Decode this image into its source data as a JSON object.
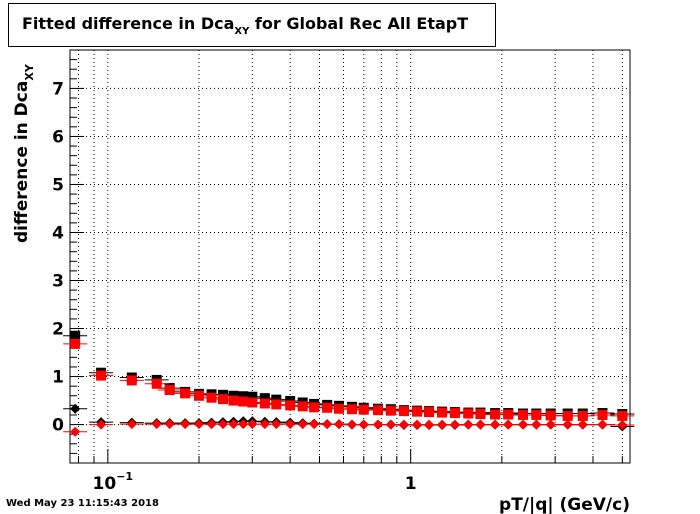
{
  "title": {
    "main": "Fitted difference in Dca",
    "sub": "XY",
    "rest": " for Global Rec All EtapT"
  },
  "timestamp": "Wed May 23 11:15:43 2018",
  "chart_data": {
    "type": "scatter",
    "xlabel": "pT/|q| (GeV/c)",
    "ylabel": "difference in Dca",
    "ylabel_sub": "XY",
    "x_scale": "log",
    "xlim": [
      0.075,
      5.3
    ],
    "ylim": [
      -0.8,
      7.8
    ],
    "grid": true,
    "x_tick_labels": [
      {
        "value": 0.1,
        "label": "10",
        "sup": "−1"
      },
      {
        "value": 1,
        "label": "1"
      }
    ],
    "y_ticks": [
      0,
      1,
      2,
      3,
      4,
      5,
      6,
      7
    ],
    "series": [
      {
        "marker": "square",
        "color": "#000000",
        "points": [
          [
            0.078,
            1.85
          ],
          [
            0.095,
            1.08
          ],
          [
            0.12,
            0.98
          ],
          [
            0.145,
            0.93
          ],
          [
            0.16,
            0.76
          ],
          [
            0.18,
            0.68
          ],
          [
            0.2,
            0.64
          ],
          [
            0.22,
            0.63
          ],
          [
            0.24,
            0.62
          ],
          [
            0.26,
            0.6
          ],
          [
            0.28,
            0.59
          ],
          [
            0.3,
            0.58
          ],
          [
            0.33,
            0.55
          ],
          [
            0.36,
            0.52
          ],
          [
            0.4,
            0.49
          ],
          [
            0.44,
            0.46
          ],
          [
            0.48,
            0.43
          ],
          [
            0.53,
            0.41
          ],
          [
            0.58,
            0.39
          ],
          [
            0.64,
            0.37
          ],
          [
            0.7,
            0.35
          ],
          [
            0.78,
            0.33
          ],
          [
            0.86,
            0.32
          ],
          [
            0.95,
            0.3
          ],
          [
            1.05,
            0.29
          ],
          [
            1.15,
            0.28
          ],
          [
            1.27,
            0.27
          ],
          [
            1.4,
            0.26
          ],
          [
            1.55,
            0.25
          ],
          [
            1.7,
            0.25
          ],
          [
            1.9,
            0.24
          ],
          [
            2.1,
            0.24
          ],
          [
            2.35,
            0.23
          ],
          [
            2.6,
            0.23
          ],
          [
            2.9,
            0.23
          ],
          [
            3.3,
            0.23
          ],
          [
            3.7,
            0.23
          ],
          [
            4.3,
            0.24
          ],
          [
            5.0,
            0.22
          ]
        ]
      },
      {
        "marker": "diamond",
        "color": "#000000",
        "points": [
          [
            0.078,
            0.33
          ],
          [
            0.095,
            0.05
          ],
          [
            0.12,
            0.04
          ],
          [
            0.145,
            0.03
          ],
          [
            0.16,
            0.03
          ],
          [
            0.18,
            0.03
          ],
          [
            0.2,
            0.03
          ],
          [
            0.22,
            0.04
          ],
          [
            0.24,
            0.05
          ],
          [
            0.26,
            0.06
          ],
          [
            0.28,
            0.07
          ],
          [
            0.3,
            0.07
          ],
          [
            0.33,
            0.06
          ],
          [
            0.36,
            0.05
          ],
          [
            0.4,
            0.04
          ],
          [
            0.44,
            0.03
          ],
          [
            0.48,
            0.02
          ],
          [
            0.53,
            0.01
          ],
          [
            0.58,
            0.01
          ],
          [
            0.64,
            0.0
          ],
          [
            0.7,
            0.0
          ],
          [
            0.78,
            0.0
          ],
          [
            0.86,
            0.0
          ],
          [
            0.95,
            -0.01
          ],
          [
            1.05,
            -0.01
          ],
          [
            1.15,
            -0.01
          ],
          [
            1.27,
            -0.01
          ],
          [
            1.4,
            -0.01
          ],
          [
            1.55,
            0.0
          ],
          [
            1.7,
            0.0
          ],
          [
            1.9,
            0.0
          ],
          [
            2.1,
            0.0
          ],
          [
            2.35,
            0.0
          ],
          [
            2.6,
            0.0
          ],
          [
            2.9,
            0.0
          ],
          [
            3.3,
            0.0
          ],
          [
            3.7,
            0.0
          ],
          [
            4.3,
            0.0
          ],
          [
            5.0,
            -0.04
          ]
        ]
      },
      {
        "marker": "square",
        "color": "#ff0000",
        "points": [
          [
            0.078,
            1.68
          ],
          [
            0.095,
            1.02
          ],
          [
            0.12,
            0.92
          ],
          [
            0.145,
            0.85
          ],
          [
            0.16,
            0.72
          ],
          [
            0.18,
            0.65
          ],
          [
            0.2,
            0.6
          ],
          [
            0.22,
            0.56
          ],
          [
            0.24,
            0.53
          ],
          [
            0.26,
            0.5
          ],
          [
            0.28,
            0.48
          ],
          [
            0.3,
            0.46
          ],
          [
            0.33,
            0.44
          ],
          [
            0.36,
            0.42
          ],
          [
            0.4,
            0.4
          ],
          [
            0.44,
            0.38
          ],
          [
            0.48,
            0.36
          ],
          [
            0.53,
            0.35
          ],
          [
            0.58,
            0.33
          ],
          [
            0.64,
            0.32
          ],
          [
            0.7,
            0.31
          ],
          [
            0.78,
            0.3
          ],
          [
            0.86,
            0.29
          ],
          [
            0.95,
            0.28
          ],
          [
            1.05,
            0.27
          ],
          [
            1.15,
            0.26
          ],
          [
            1.27,
            0.25
          ],
          [
            1.4,
            0.24
          ],
          [
            1.55,
            0.23
          ],
          [
            1.7,
            0.22
          ],
          [
            1.9,
            0.21
          ],
          [
            2.1,
            0.21
          ],
          [
            2.35,
            0.2
          ],
          [
            2.6,
            0.2
          ],
          [
            2.9,
            0.19
          ],
          [
            3.3,
            0.18
          ],
          [
            3.7,
            0.18
          ],
          [
            4.3,
            0.2
          ],
          [
            5.0,
            0.18
          ]
        ]
      },
      {
        "marker": "diamond",
        "color": "#ff0000",
        "points": [
          [
            0.078,
            -0.15
          ],
          [
            0.095,
            0.0
          ],
          [
            0.12,
            0.01
          ],
          [
            0.145,
            0.01
          ],
          [
            0.16,
            0.01
          ],
          [
            0.18,
            0.01
          ],
          [
            0.2,
            0.01
          ],
          [
            0.22,
            0.01
          ],
          [
            0.24,
            0.01
          ],
          [
            0.26,
            0.01
          ],
          [
            0.28,
            0.01
          ],
          [
            0.3,
            0.01
          ],
          [
            0.33,
            0.01
          ],
          [
            0.36,
            0.01
          ],
          [
            0.4,
            0.01
          ],
          [
            0.44,
            0.01
          ],
          [
            0.48,
            0.01
          ],
          [
            0.53,
            0.01
          ],
          [
            0.58,
            0.01
          ],
          [
            0.64,
            0.0
          ],
          [
            0.7,
            0.0
          ],
          [
            0.78,
            0.0
          ],
          [
            0.86,
            0.0
          ],
          [
            0.95,
            0.0
          ],
          [
            1.05,
            0.0
          ],
          [
            1.15,
            0.0
          ],
          [
            1.27,
            0.0
          ],
          [
            1.4,
            0.0
          ],
          [
            1.55,
            0.0
          ],
          [
            1.7,
            0.0
          ],
          [
            1.9,
            0.0
          ],
          [
            2.1,
            0.0
          ],
          [
            2.35,
            0.0
          ],
          [
            2.6,
            0.0
          ],
          [
            2.9,
            0.0
          ],
          [
            3.3,
            0.0
          ],
          [
            3.7,
            0.0
          ],
          [
            4.3,
            0.0
          ],
          [
            5.0,
            -0.01
          ]
        ]
      }
    ]
  }
}
